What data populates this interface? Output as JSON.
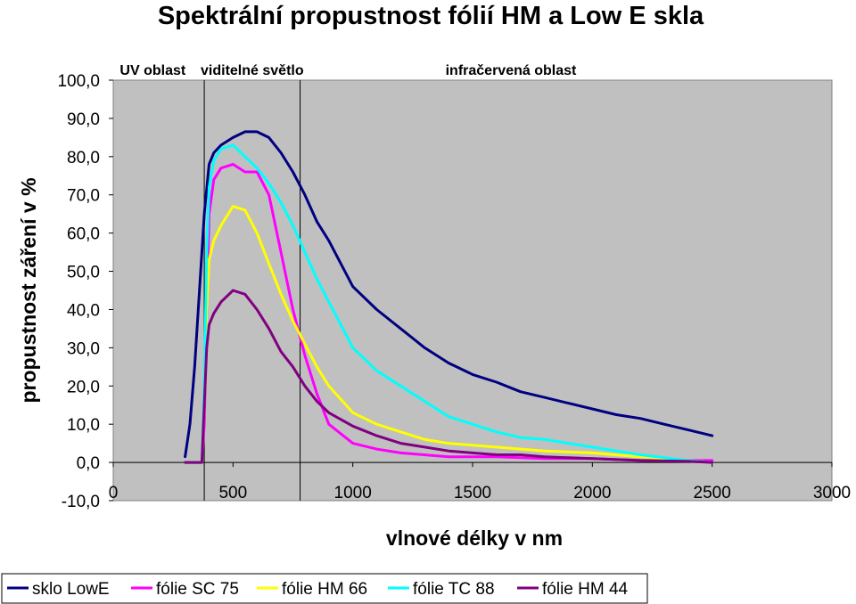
{
  "chart_data": {
    "type": "line",
    "title": "Spektrální propustnost fólií HM a Low E skla",
    "xlabel": "vlnové délky v nm",
    "ylabel": "propustnost záření v %",
    "xlim": [
      0,
      3000
    ],
    "ylim": [
      -10,
      100
    ],
    "x_ticks": [
      "0",
      "500",
      "1000",
      "1500",
      "2000",
      "2500",
      "3000"
    ],
    "y_ticks": [
      "100,0",
      "90,0",
      "80,0",
      "70,0",
      "60,0",
      "50,0",
      "40,0",
      "30,0",
      "20,0",
      "10,0",
      "0,0",
      "-10,0"
    ],
    "grid": false,
    "background": "#c0c0c0",
    "vertical_lines": [
      380,
      780
    ],
    "annotations": [
      {
        "text": "UV oblast",
        "x": 165
      },
      {
        "text": "viditelné světlo",
        "x": 580
      },
      {
        "text": "infračervená oblast",
        "x": 1660
      }
    ],
    "legend_position": "bottom",
    "series": [
      {
        "name": "sklo LowE",
        "color": "#000080",
        "x": [
          300,
          320,
          340,
          360,
          380,
          400,
          420,
          450,
          500,
          550,
          600,
          650,
          700,
          750,
          800,
          850,
          900,
          1000,
          1100,
          1200,
          1300,
          1400,
          1500,
          1600,
          1700,
          1800,
          1900,
          2000,
          2100,
          2200,
          2300,
          2400,
          2500
        ],
        "y": [
          1.5,
          10,
          25,
          45,
          65,
          78,
          81,
          83,
          85,
          86.5,
          86.5,
          85,
          81,
          76,
          70,
          63,
          58,
          46,
          40,
          35,
          30,
          26,
          23,
          21,
          18.5,
          17,
          15.5,
          14,
          12.5,
          11.5,
          10,
          8.5,
          7
        ]
      },
      {
        "name": "fólie SC 75",
        "color": "#ff00ff",
        "x": [
          300,
          350,
          370,
          380,
          390,
          400,
          420,
          450,
          500,
          550,
          600,
          650,
          700,
          750,
          800,
          850,
          900,
          1000,
          1100,
          1200,
          1400,
          1600,
          1800,
          2000,
          2200,
          2400,
          2500
        ],
        "y": [
          0,
          0,
          0,
          10,
          40,
          65,
          74,
          77,
          78,
          76,
          76,
          70,
          55,
          40,
          28,
          18,
          10,
          5,
          3.5,
          2.5,
          1.5,
          1.5,
          1,
          1,
          0.5,
          0.5,
          0.5
        ]
      },
      {
        "name": "fólie HM 66",
        "color": "#ffff00",
        "x": [
          300,
          350,
          370,
          380,
          390,
          400,
          420,
          450,
          500,
          550,
          600,
          650,
          700,
          750,
          800,
          850,
          900,
          1000,
          1100,
          1200,
          1300,
          1400,
          1500,
          1600,
          1700,
          1800,
          2000,
          2200,
          2400,
          2500
        ],
        "y": [
          0,
          0,
          0,
          15,
          40,
          53,
          58,
          62,
          67,
          66,
          60,
          52,
          44,
          37,
          31,
          25,
          20,
          13,
          10,
          8,
          6,
          5,
          4.5,
          4,
          3.5,
          3,
          2.5,
          1.5,
          0.5,
          0
        ]
      },
      {
        "name": "fólie TC 88",
        "color": "#00ffff",
        "x": [
          300,
          350,
          370,
          380,
          390,
          400,
          420,
          450,
          500,
          550,
          600,
          650,
          700,
          750,
          800,
          850,
          900,
          1000,
          1100,
          1200,
          1300,
          1400,
          1500,
          1600,
          1700,
          1800,
          2000,
          2200,
          2400,
          2500
        ],
        "y": [
          0,
          0,
          0,
          20,
          55,
          72,
          79,
          82,
          83,
          80,
          77,
          73,
          68,
          62,
          55,
          48,
          42,
          30,
          24,
          20,
          16,
          12,
          10,
          8,
          6.5,
          6,
          4,
          2,
          0.5,
          0
        ]
      },
      {
        "name": "fólie HM 44",
        "color": "#800080",
        "x": [
          300,
          350,
          370,
          380,
          390,
          400,
          420,
          450,
          500,
          550,
          600,
          650,
          700,
          750,
          800,
          850,
          900,
          1000,
          1100,
          1200,
          1300,
          1400,
          1500,
          1600,
          1700,
          1800,
          2000,
          2200,
          2400,
          2500
        ],
        "y": [
          0,
          0,
          0,
          15,
          30,
          36,
          39,
          42,
          45,
          44,
          40,
          35,
          29,
          25,
          20,
          16,
          13,
          9.5,
          7,
          5,
          4,
          3,
          2.5,
          2,
          2,
          1.5,
          1,
          0.5,
          0.3,
          0
        ]
      }
    ]
  }
}
